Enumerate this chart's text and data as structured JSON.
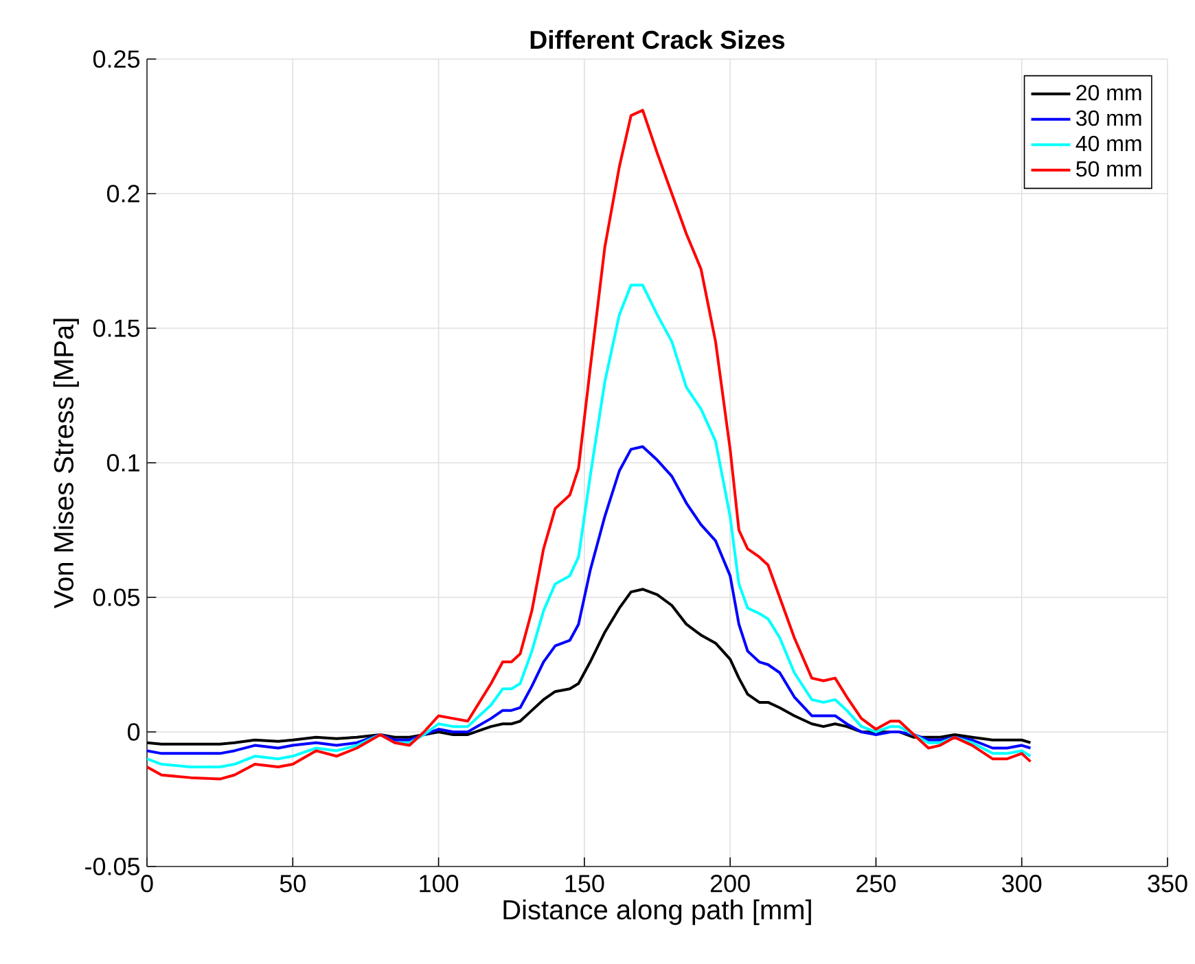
{
  "chart_data": {
    "type": "line",
    "title": "Different Crack Sizes",
    "xlabel": "Distance along path [mm]",
    "ylabel": "Von Mises Stress [MPa]",
    "x": [
      0,
      5,
      15,
      25,
      30,
      37,
      45,
      50,
      58,
      65,
      72,
      80,
      85,
      90,
      95,
      100,
      105,
      110,
      118,
      122,
      125,
      128,
      132,
      136,
      140,
      145,
      148,
      152,
      157,
      162,
      166,
      170,
      175,
      180,
      185,
      190,
      195,
      200,
      203,
      206,
      210,
      213,
      217,
      222,
      228,
      232,
      236,
      240,
      245,
      250,
      255,
      258,
      263,
      268,
      272,
      277,
      283,
      290,
      295,
      300,
      303
    ],
    "series": [
      {
        "name": "20 mm",
        "color": "#000000",
        "values": [
          -0.004,
          -0.0045,
          -0.0045,
          -0.0045,
          -0.004,
          -0.003,
          -0.0035,
          -0.003,
          -0.002,
          -0.0025,
          -0.002,
          -0.001,
          -0.002,
          -0.002,
          -0.001,
          0.0,
          -0.001,
          -0.001,
          0.002,
          0.003,
          0.003,
          0.004,
          0.008,
          0.012,
          0.015,
          0.016,
          0.018,
          0.026,
          0.037,
          0.046,
          0.052,
          0.053,
          0.051,
          0.047,
          0.04,
          0.036,
          0.033,
          0.027,
          0.02,
          0.014,
          0.011,
          0.011,
          0.009,
          0.006,
          0.003,
          0.002,
          0.003,
          0.002,
          0.0,
          null,
          0.0,
          0.0,
          -0.002,
          -0.002,
          -0.002,
          -0.001,
          -0.002,
          -0.003,
          -0.003,
          -0.003,
          -0.004
        ]
      },
      {
        "name": "30 mm",
        "color": "#0000ff",
        "values": [
          -0.007,
          -0.008,
          -0.008,
          -0.008,
          -0.007,
          -0.005,
          -0.006,
          -0.005,
          -0.004,
          -0.005,
          -0.004,
          -0.001,
          -0.003,
          -0.003,
          -0.001,
          0.001,
          0.0,
          0.0,
          0.005,
          0.008,
          0.008,
          0.009,
          0.017,
          0.026,
          0.032,
          0.034,
          0.04,
          0.06,
          0.08,
          0.097,
          0.105,
          0.106,
          0.101,
          0.095,
          0.085,
          0.077,
          0.071,
          0.058,
          0.04,
          0.03,
          0.026,
          0.025,
          0.022,
          0.013,
          0.006,
          0.006,
          0.006,
          0.003,
          0.0,
          -0.001,
          0.0,
          0.0,
          -0.001,
          -0.003,
          -0.003,
          -0.002,
          -0.003,
          -0.006,
          -0.006,
          -0.005,
          -0.006
        ]
      },
      {
        "name": "40 mm",
        "color": "#00ffff",
        "values": [
          -0.01,
          -0.012,
          -0.013,
          -0.013,
          -0.012,
          -0.009,
          -0.01,
          -0.009,
          -0.006,
          -0.007,
          -0.005,
          -0.001,
          -0.004,
          -0.004,
          -0.001,
          0.003,
          0.002,
          0.002,
          0.01,
          0.016,
          0.016,
          0.018,
          0.03,
          0.045,
          0.055,
          0.058,
          0.065,
          0.095,
          0.13,
          0.155,
          0.166,
          0.166,
          0.155,
          0.145,
          0.128,
          0.12,
          0.108,
          0.08,
          0.055,
          0.046,
          0.044,
          0.042,
          0.035,
          0.022,
          0.012,
          0.011,
          0.012,
          0.008,
          0.002,
          0.0,
          0.002,
          0.002,
          -0.001,
          -0.004,
          -0.004,
          -0.002,
          -0.004,
          -0.008,
          -0.008,
          -0.007,
          -0.009
        ]
      },
      {
        "name": "50 mm",
        "color": "#ff0000",
        "values": [
          -0.013,
          -0.016,
          -0.017,
          -0.0175,
          -0.016,
          -0.012,
          -0.013,
          -0.012,
          -0.007,
          -0.009,
          -0.006,
          -0.001,
          -0.004,
          -0.005,
          0.0,
          0.006,
          0.005,
          0.004,
          0.018,
          0.026,
          0.026,
          0.029,
          0.045,
          0.068,
          0.083,
          0.088,
          0.098,
          0.135,
          0.18,
          0.21,
          0.229,
          0.231,
          0.215,
          0.2,
          0.185,
          0.172,
          0.145,
          0.105,
          0.075,
          0.068,
          0.065,
          0.062,
          0.05,
          0.035,
          0.02,
          0.019,
          0.02,
          0.013,
          0.005,
          0.001,
          0.004,
          0.004,
          -0.001,
          -0.006,
          -0.005,
          -0.002,
          -0.005,
          -0.01,
          -0.01,
          -0.008,
          -0.011
        ]
      }
    ],
    "xlim": [
      0,
      350
    ],
    "ylim": [
      -0.05,
      0.25
    ],
    "xticks": [
      0,
      50,
      100,
      150,
      200,
      250,
      300,
      350
    ],
    "yticks": [
      -0.05,
      0,
      0.05,
      0.1,
      0.15,
      0.2,
      0.25
    ],
    "grid": true,
    "legend": "top right",
    "line_style": "solid",
    "marker": "none"
  }
}
